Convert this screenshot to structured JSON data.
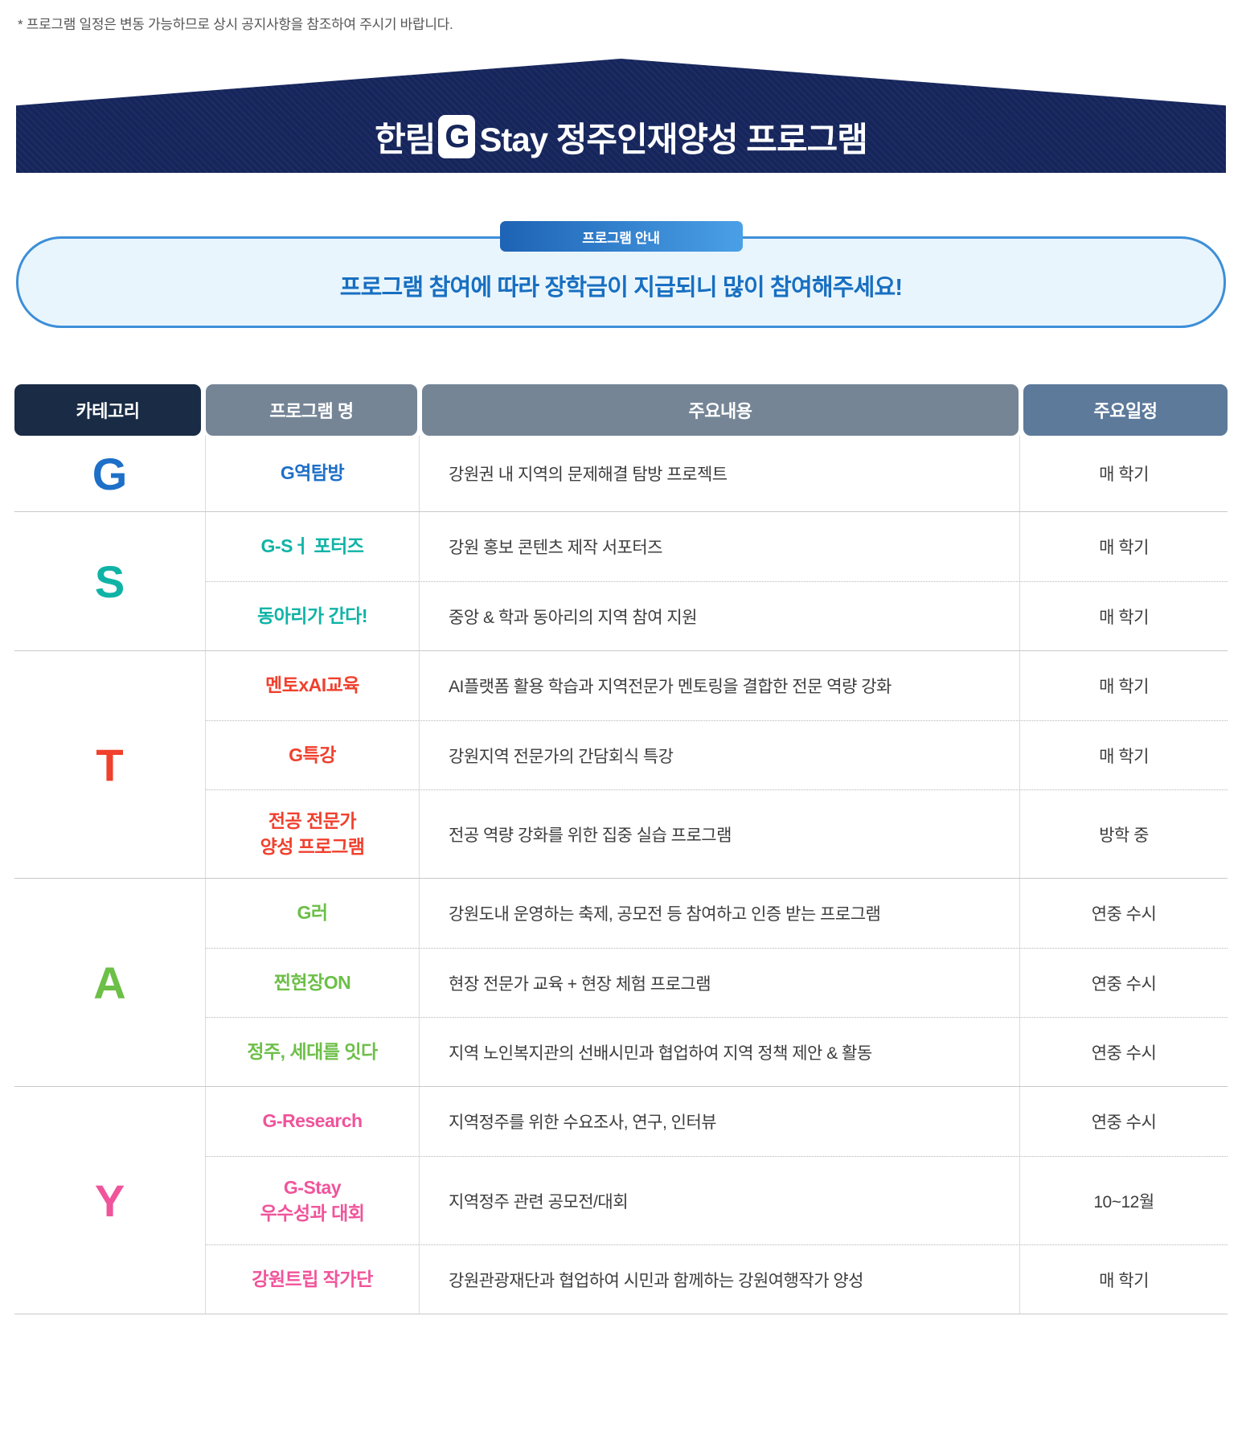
{
  "note": "* 프로그램 일정은 변동 가능하므로 상시 공지사항을 참조하여 주시기 바랍니다.",
  "banner": {
    "title_prefix": "한림",
    "logo_letter": "G",
    "title_suffix": "Stay 정주인재양성 프로그램"
  },
  "info": {
    "badge": "프로그램 안내",
    "message": "프로그램 참여에 따라 장학금이 지급되니 많이 참여해주세요!"
  },
  "colors": {
    "banner_navy": "#16265c",
    "badge_gradient_start": "#1e63b5",
    "badge_gradient_end": "#4aa0e6",
    "callout_border": "#3d8fd8",
    "callout_bg": "#e9f5fd",
    "callout_text": "#176fc1",
    "header_category_bg": "#192b45",
    "header_gray_bg": "#758596",
    "header_schedule_bg": "#5d7a9b"
  },
  "table": {
    "headers": [
      "카테고리",
      "프로그램 명",
      "주요내용",
      "주요일정"
    ],
    "groups": [
      {
        "category": "G",
        "color": "#1d6fc8",
        "rows": [
          {
            "name": "G역탐방",
            "content": "강원권 내 지역의 문제해결 탐방 프로젝트",
            "schedule": "매 학기"
          }
        ]
      },
      {
        "category": "S",
        "color": "#0fb3a6",
        "rows": [
          {
            "name": "G-Sㅓ 포터즈",
            "content": "강원 홍보 콘텐츠 제작 서포터즈",
            "schedule": "매 학기"
          },
          {
            "name": "동아리가 간다!",
            "content": "중앙 & 학과 동아리의 지역 참여 지원",
            "schedule": "매 학기"
          }
        ]
      },
      {
        "category": "T",
        "color": "#f0402e",
        "rows": [
          {
            "name": "멘토xAI교육",
            "content": "AI플랫폼 활용 학습과 지역전문가 멘토링을 결합한 전문 역량 강화",
            "schedule": "매 학기"
          },
          {
            "name": "G특강",
            "content": "강원지역 전문가의 간담회식 특강",
            "schedule": "매 학기"
          },
          {
            "name": "전공 전문가\n양성 프로그램",
            "content": "전공 역량 강화를 위한 집중 실습 프로그램",
            "schedule": "방학 중"
          }
        ]
      },
      {
        "category": "A",
        "color": "#6cbf47",
        "rows": [
          {
            "name": "G러",
            "content": "강원도내 운영하는 축제, 공모전 등 참여하고 인증 받는 프로그램",
            "schedule": "연중 수시"
          },
          {
            "name": "찐현장ON",
            "content": "현장 전문가 교육 + 현장 체험 프로그램",
            "schedule": "연중 수시"
          },
          {
            "name": "정주, 세대를 잇다",
            "content": "지역 노인복지관의 선배시민과 협업하여 지역 정책 제안 & 활동",
            "schedule": "연중 수시"
          }
        ]
      },
      {
        "category": "Y",
        "color": "#f0549b",
        "rows": [
          {
            "name": "G-Research",
            "content": "지역정주를 위한 수요조사, 연구, 인터뷰",
            "schedule": "연중 수시"
          },
          {
            "name": "G-Stay\n우수성과 대회",
            "content": "지역정주 관련 공모전/대회",
            "schedule": "10~12월"
          },
          {
            "name": "강원트립 작가단",
            "content": "강원관광재단과 협업하여 시민과 함께하는 강원여행작가 양성",
            "schedule": "매 학기"
          }
        ]
      }
    ]
  }
}
